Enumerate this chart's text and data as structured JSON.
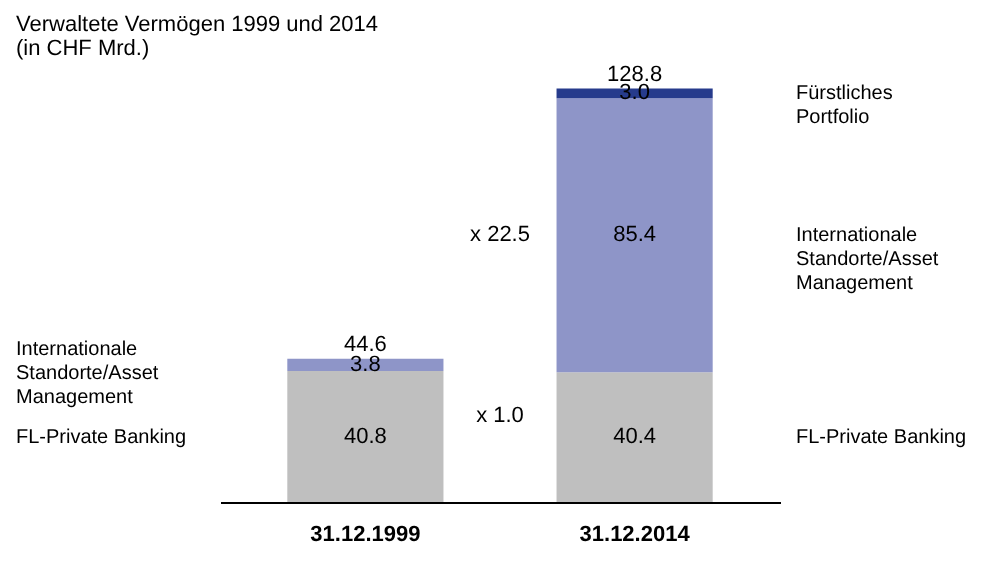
{
  "chart_data": {
    "type": "bar",
    "title": "Verwaltete Vermögen 1999 und 2014",
    "subtitle": "(in CHF Mrd.)",
    "categories": [
      "31.12.1999",
      "31.12.2014"
    ],
    "stacked": true,
    "series": [
      {
        "name": "FL-Private Banking",
        "color": "#bfbfbf",
        "values": [
          40.8,
          40.4
        ],
        "value_labels": [
          "40.8",
          "40.4"
        ]
      },
      {
        "name": "Internationale Standorte/Asset Management",
        "color": "#8e95c8",
        "values": [
          3.8,
          85.4
        ],
        "value_labels": [
          "3.8",
          "85.4"
        ]
      },
      {
        "name": "Fürstliches Portfolio",
        "color": "#263b8c",
        "values": [
          null,
          3.0
        ],
        "value_labels": [
          null,
          "3.0"
        ]
      }
    ],
    "totals": [
      "44.6",
      "128.8"
    ],
    "annotations": [
      "x 22.5",
      "x 1.0"
    ],
    "legend": false,
    "tick_labels": "x"
  }
}
